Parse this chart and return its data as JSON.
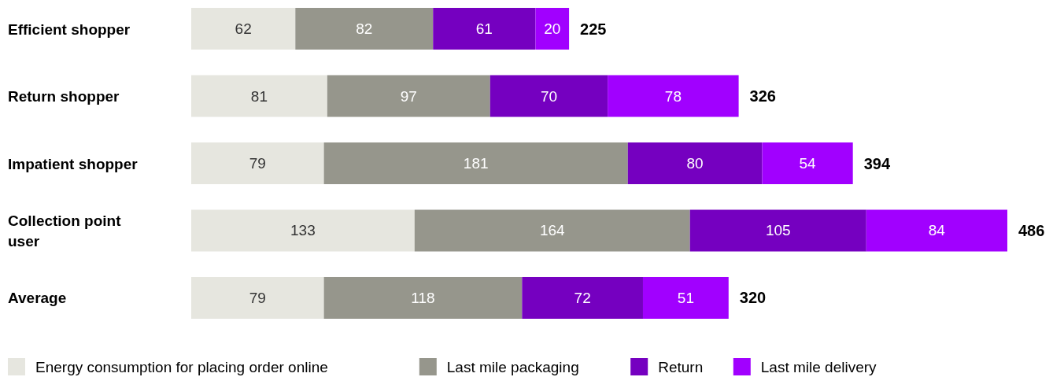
{
  "chart_data": {
    "type": "bar",
    "orientation": "horizontal",
    "stacked": true,
    "data_labels": true,
    "legend": "bottom",
    "categories": [
      "Efficient shopper",
      "Return shopper",
      "Impatient shopper",
      "Collection point user",
      "Average"
    ],
    "series": [
      {
        "name": "Energy consumption for placing order online",
        "color": "#e6e6df",
        "values": [
          62,
          81,
          79,
          133,
          79
        ]
      },
      {
        "name": "Last mile packaging",
        "color": "#96968c",
        "values": [
          82,
          97,
          181,
          164,
          118
        ]
      },
      {
        "name": "Return",
        "color": "#7500c0",
        "values": [
          61,
          70,
          80,
          105,
          72
        ]
      },
      {
        "name": "Last mile delivery",
        "color": "#a100ff",
        "values": [
          20,
          78,
          54,
          84,
          51
        ]
      }
    ],
    "totals": [
      "225",
      "326",
      "394",
      "486",
      "320"
    ]
  }
}
